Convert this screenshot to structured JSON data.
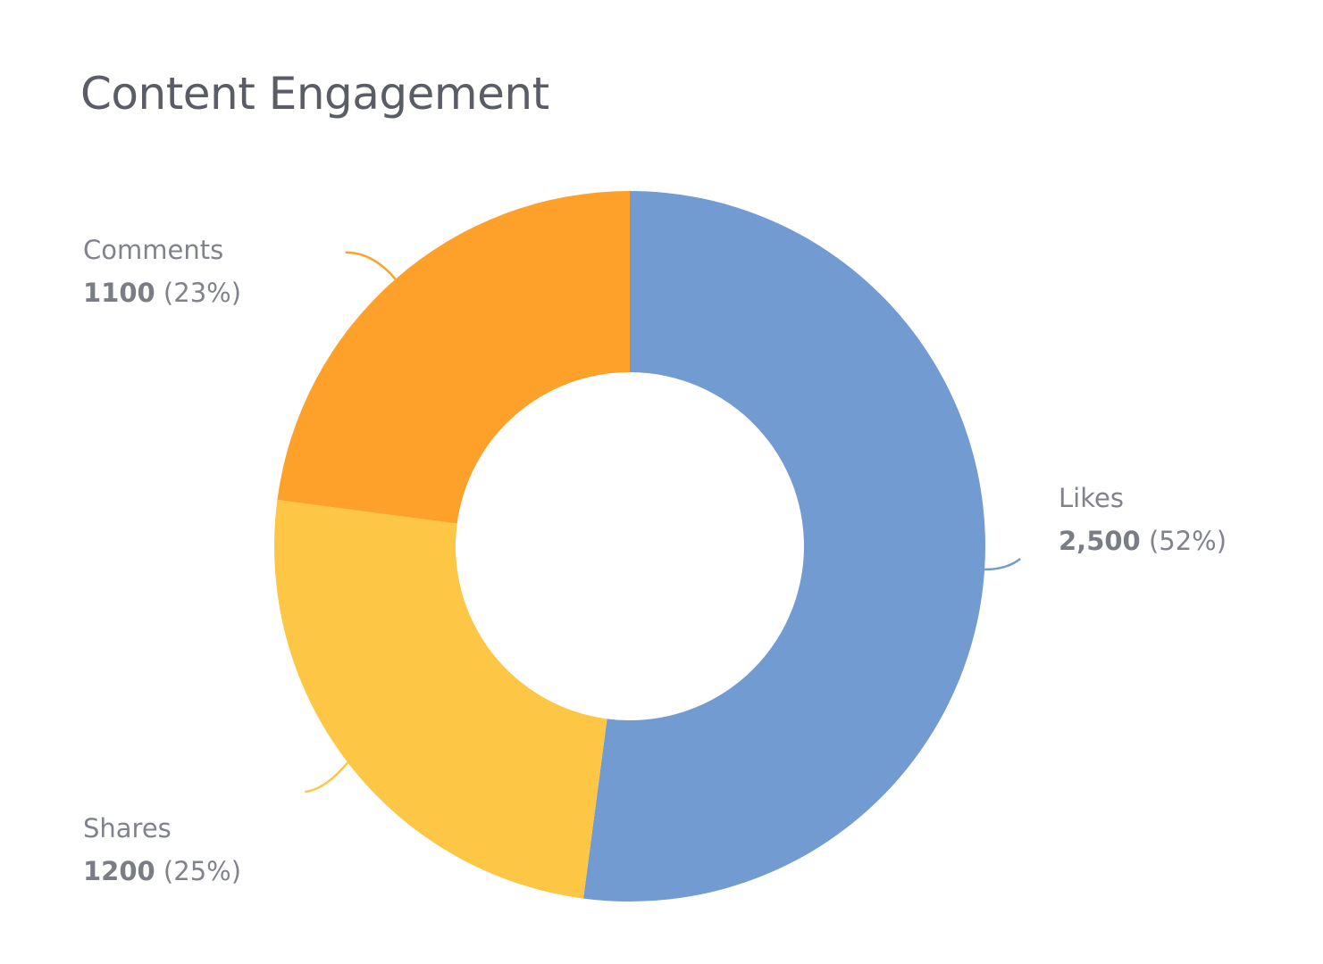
{
  "chart_data": {
    "type": "pie",
    "variant": "donut",
    "title": "Content Engagement",
    "start_angle": "top",
    "direction": "clockwise",
    "legend": "none",
    "slices": [
      {
        "label": "Likes",
        "value": 2500,
        "value_text": "2,500",
        "percent_text": "(52%)",
        "color": "#729bd2",
        "label_side": "right"
      },
      {
        "label": "Shares",
        "value": 1200,
        "value_text": "1200",
        "percent_text": "(25%)",
        "color": "#fdc745",
        "label_side": "bottom-left"
      },
      {
        "label": "Comments",
        "value": 1100,
        "value_text": "1100",
        "percent_text": "(23%)",
        "color": "#fda12a",
        "label_side": "top-left"
      }
    ]
  }
}
